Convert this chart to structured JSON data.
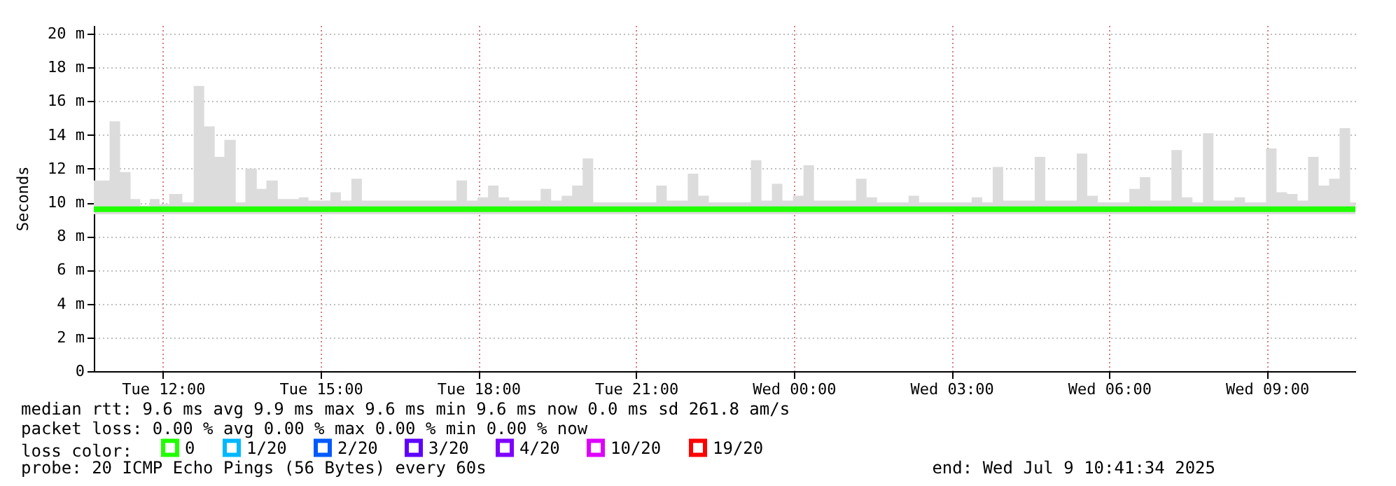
{
  "chart_data": {
    "type": "line",
    "ylabel": "Seconds",
    "legend_title": "loss color:",
    "legend": "bottom left",
    "grid": true,
    "xlim": [
      "2025-07-08T10:41",
      "2025-07-09T10:41"
    ],
    "xticks": [
      {
        "value": "2025-07-08T12:00",
        "label": "Tue 12:00"
      },
      {
        "value": "2025-07-08T15:00",
        "label": "Tue 15:00"
      },
      {
        "value": "2025-07-08T18:00",
        "label": "Tue 18:00"
      },
      {
        "value": "2025-07-08T21:00",
        "label": "Tue 21:00"
      },
      {
        "value": "2025-07-09T00:00",
        "label": "Wed 00:00"
      },
      {
        "value": "2025-07-09T03:00",
        "label": "Wed 03:00"
      },
      {
        "value": "2025-07-09T06:00",
        "label": "Wed 06:00"
      },
      {
        "value": "2025-07-09T09:00",
        "label": "Wed 09:00"
      }
    ],
    "ylim": [
      0,
      20.5
    ],
    "yticks": [
      0,
      {
        "value": 2,
        "label": "2 m"
      },
      {
        "value": 4,
        "label": "4 m"
      },
      {
        "value": 6,
        "label": "6 m"
      },
      {
        "value": 8,
        "label": "8 m"
      },
      {
        "value": 10,
        "label": "10 m"
      },
      {
        "value": 12,
        "label": "12 m"
      },
      {
        "value": 14,
        "label": "14 m"
      },
      {
        "value": 16,
        "label": "16 m"
      },
      {
        "value": 18,
        "label": "18 m"
      },
      {
        "value": 20,
        "label": "20 m"
      }
    ],
    "x": [
      "2025-07-08T10:41",
      "2025-07-08T10:59",
      "2025-07-08T11:11",
      "2025-07-08T11:23",
      "2025-07-08T11:34",
      "2025-07-08T11:45",
      "2025-07-08T11:56",
      "2025-07-08T12:07",
      "2025-07-08T12:22",
      "2025-07-08T12:35",
      "2025-07-08T12:47",
      "2025-07-08T12:59",
      "2025-07-08T13:10",
      "2025-07-08T13:23",
      "2025-07-08T13:34",
      "2025-07-08T13:47",
      "2025-07-08T13:58",
      "2025-07-08T14:11",
      "2025-07-08T14:35",
      "2025-07-08T14:46",
      "2025-07-08T15:11",
      "2025-07-08T15:23",
      "2025-07-08T15:35",
      "2025-07-08T15:47",
      "2025-07-08T17:35",
      "2025-07-08T17:47",
      "2025-07-08T17:59",
      "2025-07-08T18:11",
      "2025-07-08T18:23",
      "2025-07-08T18:35",
      "2025-07-08T19:11",
      "2025-07-08T19:23",
      "2025-07-08T19:35",
      "2025-07-08T19:47",
      "2025-07-08T19:59",
      "2025-07-08T20:11",
      "2025-07-08T21:23",
      "2025-07-08T21:35",
      "2025-07-08T21:59",
      "2025-07-08T22:11",
      "2025-07-08T22:23",
      "2025-07-08T23:11",
      "2025-07-08T23:23",
      "2025-07-08T23:35",
      "2025-07-08T23:47",
      "2025-07-08T23:59",
      "2025-07-09T00:11",
      "2025-07-09T00:23",
      "2025-07-09T01:11",
      "2025-07-09T01:23",
      "2025-07-09T01:35",
      "2025-07-09T02:11",
      "2025-07-09T02:23",
      "2025-07-09T03:23",
      "2025-07-09T03:35",
      "2025-07-09T03:47",
      "2025-07-09T03:59",
      "2025-07-09T04:35",
      "2025-07-09T04:47",
      "2025-07-09T05:23",
      "2025-07-09T05:35",
      "2025-07-09T05:47",
      "2025-07-09T06:23",
      "2025-07-09T06:35",
      "2025-07-09T06:47",
      "2025-07-09T07:11",
      "2025-07-09T07:23",
      "2025-07-09T07:35",
      "2025-07-09T07:47",
      "2025-07-09T07:59",
      "2025-07-09T08:23",
      "2025-07-09T08:35",
      "2025-07-09T08:59",
      "2025-07-09T09:11",
      "2025-07-09T09:23",
      "2025-07-09T09:35",
      "2025-07-09T09:47",
      "2025-07-09T09:59",
      "2025-07-09T10:11",
      "2025-07-09T10:23",
      "2025-07-09T10:35",
      "2025-07-09T10:41"
    ],
    "series": [
      {
        "name": "0",
        "color": "#20ff00",
        "values": [
          9.6,
          9.6,
          9.6,
          9.6,
          9.6,
          9.6,
          9.6,
          9.6,
          9.6,
          9.6,
          9.6,
          9.6,
          9.6,
          9.6,
          9.6,
          9.6,
          9.6,
          9.6,
          9.6,
          9.6,
          9.6,
          9.6,
          9.6,
          9.6,
          9.6,
          9.6,
          9.6,
          9.6,
          9.6,
          9.6,
          9.6,
          9.6,
          9.6,
          9.6,
          9.6,
          9.6,
          9.6,
          9.6,
          9.6,
          9.6,
          9.6,
          9.6,
          9.6,
          9.6,
          9.6,
          9.6,
          9.6,
          9.6,
          9.6,
          9.6,
          9.6,
          9.6,
          9.6,
          9.6,
          9.6,
          9.6,
          9.6,
          9.6,
          9.6,
          9.6,
          9.6,
          9.6,
          9.6,
          9.6,
          9.6,
          9.6,
          9.6,
          9.6,
          9.6,
          9.6,
          9.6,
          9.6,
          9.6,
          9.6,
          9.6,
          9.6,
          9.6,
          9.6,
          9.6,
          9.6,
          9.6,
          9.6
        ],
        "lower": [
          9.3,
          9.3,
          9.3,
          9.3,
          9.3,
          9.3,
          9.3,
          9.3,
          9.3,
          9.3,
          9.3,
          9.3,
          9.3,
          9.3,
          9.3,
          9.3,
          9.3,
          9.3,
          9.3,
          9.3,
          9.3,
          9.3,
          9.3,
          9.3,
          9.3,
          9.3,
          9.3,
          9.3,
          9.3,
          9.3,
          9.3,
          9.3,
          9.3,
          9.3,
          9.3,
          9.3,
          9.3,
          9.3,
          9.3,
          9.3,
          9.3,
          9.3,
          9.3,
          9.3,
          9.3,
          9.3,
          9.3,
          9.3,
          9.3,
          9.3,
          9.3,
          9.3,
          9.3,
          9.3,
          9.3,
          9.3,
          9.3,
          9.3,
          9.3,
          9.3,
          9.3,
          9.3,
          9.3,
          9.3,
          9.3,
          9.3,
          9.3,
          9.3,
          9.3,
          9.3,
          9.3,
          9.3,
          9.3,
          9.3,
          9.3,
          9.3,
          9.3,
          9.3,
          9.3,
          9.3,
          9.3,
          9.3
        ],
        "upper": [
          11.3,
          14.8,
          11.8,
          10.2,
          9.8,
          10.2,
          9.9,
          10.5,
          10.0,
          16.9,
          14.5,
          12.7,
          13.7,
          10.0,
          12.0,
          10.8,
          11.3,
          10.2,
          10.3,
          10.1,
          10.6,
          10.1,
          11.4,
          10.1,
          11.3,
          10.1,
          10.3,
          11.0,
          10.3,
          10.1,
          10.8,
          10.1,
          10.4,
          11.0,
          12.6,
          10.0,
          11.0,
          10.1,
          11.7,
          10.4,
          10.0,
          12.5,
          10.1,
          11.1,
          10.1,
          10.4,
          12.2,
          10.1,
          11.4,
          10.3,
          10.0,
          10.4,
          10.0,
          10.3,
          10.0,
          12.1,
          10.1,
          12.7,
          10.1,
          12.9,
          10.4,
          10.0,
          10.8,
          11.5,
          10.1,
          13.1,
          10.3,
          10.0,
          14.1,
          10.1,
          10.3,
          10.0,
          13.2,
          10.6,
          10.5,
          10.1,
          12.7,
          11.0,
          11.4,
          14.4,
          10.0,
          10.0
        ]
      },
      {
        "name": "1/20",
        "color": "#00b8ff",
        "values": [
          null,
          null,
          null,
          null,
          null,
          null,
          null,
          null,
          null,
          null,
          null,
          null,
          null,
          null,
          null,
          null,
          null,
          null,
          null,
          null,
          null,
          null,
          null,
          null,
          null,
          null,
          null,
          null,
          null,
          null,
          null,
          null,
          null,
          null,
          null,
          null,
          null,
          null,
          null,
          null,
          null,
          null,
          null,
          null,
          null,
          null,
          null,
          null,
          null,
          null,
          null,
          null,
          null,
          null,
          null,
          null,
          null,
          null,
          null,
          null,
          null,
          null,
          null,
          null,
          null,
          null,
          null,
          null,
          null,
          null,
          null,
          null,
          null,
          null,
          null,
          null,
          null,
          null,
          null,
          null,
          null,
          null
        ]
      },
      {
        "name": "2/20",
        "color": "#0059ff",
        "values": [
          null,
          null,
          null,
          null,
          null,
          null,
          null,
          null,
          null,
          null,
          null,
          null,
          null,
          null,
          null,
          null,
          null,
          null,
          null,
          null,
          null,
          null,
          null,
          null,
          null,
          null,
          null,
          null,
          null,
          null,
          null,
          null,
          null,
          null,
          null,
          null,
          null,
          null,
          null,
          null,
          null,
          null,
          null,
          null,
          null,
          null,
          null,
          null,
          null,
          null,
          null,
          null,
          null,
          null,
          null,
          null,
          null,
          null,
          null,
          null,
          null,
          null,
          null,
          null,
          null,
          null,
          null,
          null,
          null,
          null,
          null,
          null,
          null,
          null,
          null,
          null,
          null,
          null,
          null,
          null,
          null,
          null
        ]
      },
      {
        "name": "3/20",
        "color": "#5e00ff",
        "values": [
          null,
          null,
          null,
          null,
          null,
          null,
          null,
          null,
          null,
          null,
          null,
          null,
          null,
          null,
          null,
          null,
          null,
          null,
          null,
          null,
          null,
          null,
          null,
          null,
          null,
          null,
          null,
          null,
          null,
          null,
          null,
          null,
          null,
          null,
          null,
          null,
          null,
          null,
          null,
          null,
          null,
          null,
          null,
          null,
          null,
          null,
          null,
          null,
          null,
          null,
          null,
          null,
          null,
          null,
          null,
          null,
          null,
          null,
          null,
          null,
          null,
          null,
          null,
          null,
          null,
          null,
          null,
          null,
          null,
          null,
          null,
          null,
          null,
          null,
          null,
          null,
          null,
          null,
          null,
          null,
          null,
          null
        ]
      },
      {
        "name": "4/20",
        "color": "#7e00ff",
        "values": [
          null,
          null,
          null,
          null,
          null,
          null,
          null,
          null,
          null,
          null,
          null,
          null,
          null,
          null,
          null,
          null,
          null,
          null,
          null,
          null,
          null,
          null,
          null,
          null,
          null,
          null,
          null,
          null,
          null,
          null,
          null,
          null,
          null,
          null,
          null,
          null,
          null,
          null,
          null,
          null,
          null,
          null,
          null,
          null,
          null,
          null,
          null,
          null,
          null,
          null,
          null,
          null,
          null,
          null,
          null,
          null,
          null,
          null,
          null,
          null,
          null,
          null,
          null,
          null,
          null,
          null,
          null,
          null,
          null,
          null,
          null,
          null,
          null,
          null,
          null,
          null,
          null,
          null,
          null,
          null,
          null,
          null
        ]
      },
      {
        "name": "10/20",
        "color": "#dd00ff",
        "values": [
          null,
          null,
          null,
          null,
          null,
          null,
          null,
          null,
          null,
          null,
          null,
          null,
          null,
          null,
          null,
          null,
          null,
          null,
          null,
          null,
          null,
          null,
          null,
          null,
          null,
          null,
          null,
          null,
          null,
          null,
          null,
          null,
          null,
          null,
          null,
          null,
          null,
          null,
          null,
          null,
          null,
          null,
          null,
          null,
          null,
          null,
          null,
          null,
          null,
          null,
          null,
          null,
          null,
          null,
          null,
          null,
          null,
          null,
          null,
          null,
          null,
          null,
          null,
          null,
          null,
          null,
          null,
          null,
          null,
          null,
          null,
          null,
          null,
          null,
          null,
          null,
          null,
          null,
          null,
          null,
          null,
          null
        ]
      },
      {
        "name": "19/20",
        "color": "#ff0000",
        "values": [
          null,
          null,
          null,
          null,
          null,
          null,
          null,
          null,
          null,
          null,
          null,
          null,
          null,
          null,
          null,
          null,
          null,
          null,
          null,
          null,
          null,
          null,
          null,
          null,
          null,
          null,
          null,
          null,
          null,
          null,
          null,
          null,
          null,
          null,
          null,
          null,
          null,
          null,
          null,
          null,
          null,
          null,
          null,
          null,
          null,
          null,
          null,
          null,
          null,
          null,
          null,
          null,
          null,
          null,
          null,
          null,
          null,
          null,
          null,
          null,
          null,
          null,
          null,
          null,
          null,
          null,
          null,
          null,
          null,
          null,
          null,
          null,
          null,
          null,
          null,
          null,
          null,
          null,
          null,
          null,
          null,
          null
        ]
      }
    ],
    "annotations": [
      "median rtt:  9.6 ms avg  9.9 ms max  9.6 ms min  9.6 ms now  0.0 ms sd  261.8   am/s",
      "packet loss: 0.00 % avg  0.00 % max  0.00 % min  0.00 % now",
      "probe:       20 ICMP Echo Pings (56 Bytes) every 60s",
      "end: Wed Jul  9 10:41:34 2025"
    ]
  }
}
